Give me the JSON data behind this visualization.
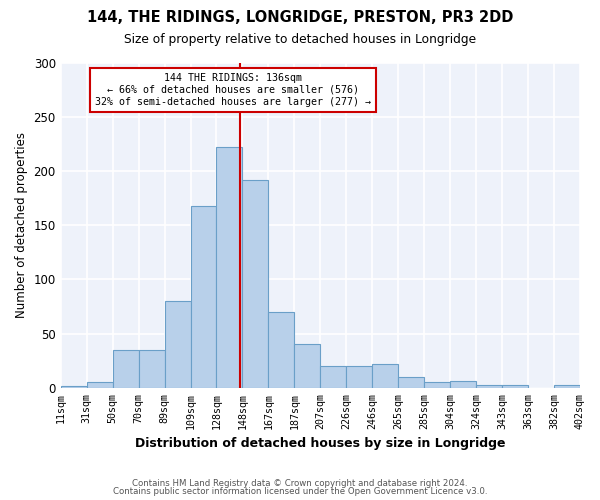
{
  "title1": "144, THE RIDINGS, LONGRIDGE, PRESTON, PR3 2DD",
  "title2": "Size of property relative to detached houses in Longridge",
  "xlabel": "Distribution of detached houses by size in Longridge",
  "ylabel": "Number of detached properties",
  "footer1": "Contains HM Land Registry data © Crown copyright and database right 2024.",
  "footer2": "Contains public sector information licensed under the Open Government Licence v3.0.",
  "annotation_line1": "144 THE RIDINGS: 136sqm",
  "annotation_line2": "← 66% of detached houses are smaller (576)",
  "annotation_line3": "32% of semi-detached houses are larger (277) →",
  "bar_values": [
    2,
    5,
    35,
    35,
    80,
    168,
    222,
    192,
    70,
    40,
    20,
    20,
    22,
    10,
    5,
    6,
    3,
    3,
    0,
    3
  ],
  "bin_labels": [
    "11sqm",
    "31sqm",
    "50sqm",
    "70sqm",
    "89sqm",
    "109sqm",
    "128sqm",
    "148sqm",
    "167sqm",
    "187sqm",
    "207sqm",
    "226sqm",
    "246sqm",
    "265sqm",
    "285sqm",
    "304sqm",
    "324sqm",
    "343sqm",
    "363sqm",
    "382sqm",
    "402sqm"
  ],
  "bar_color": "#b8d0ea",
  "bar_edge_color": "#6a9fc8",
  "vline_color": "#cc0000",
  "ylim": [
    0,
    300
  ],
  "yticks": [
    0,
    50,
    100,
    150,
    200,
    250,
    300
  ],
  "background_color": "#eef2fa",
  "grid_color": "#ffffff",
  "annotation_box_color": "#ffffff",
  "annotation_box_edge": "#cc0000",
  "figsize": [
    6.0,
    5.0
  ],
  "dpi": 100
}
